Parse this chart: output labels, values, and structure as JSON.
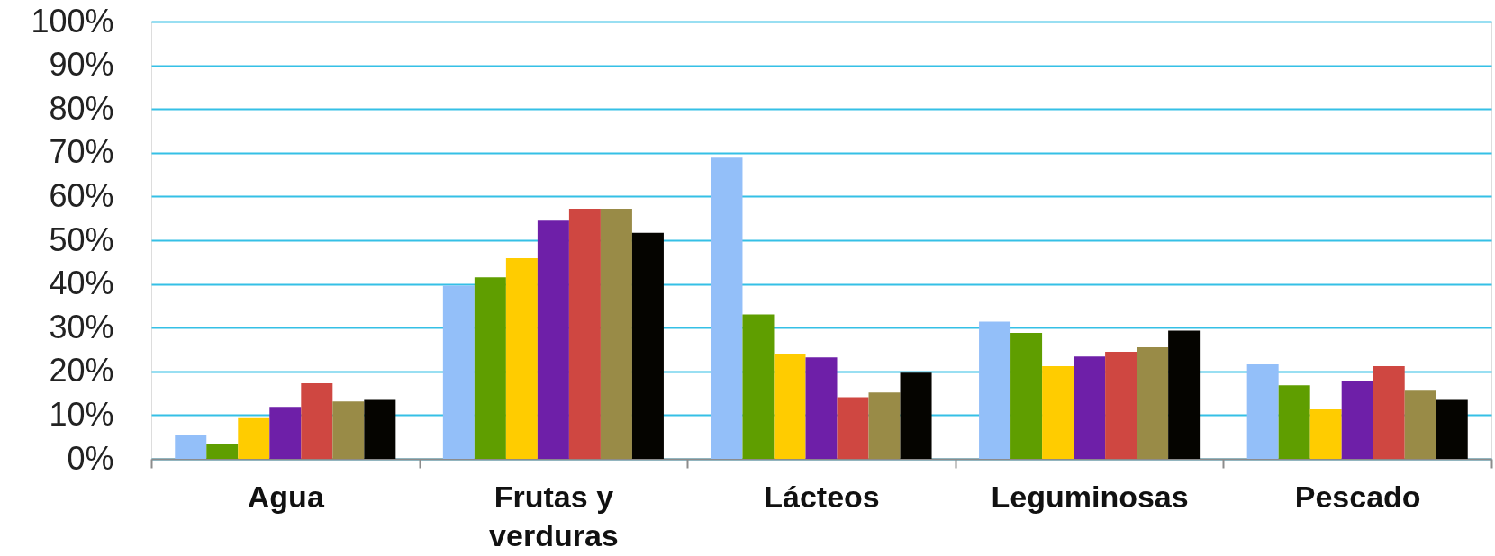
{
  "chart_data": {
    "type": "bar",
    "categories": [
      "Agua",
      "Frutas y verduras",
      "Lácteos",
      "Leguminosas",
      "Pescado"
    ],
    "series": [
      {
        "color": "#93bff9",
        "values": [
          5.4,
          39.6,
          68.9,
          31.4,
          21.6
        ]
      },
      {
        "color": "#5f9e00",
        "values": [
          3.3,
          41.5,
          33.0,
          28.8,
          16.8
        ]
      },
      {
        "color": "#ffcc00",
        "values": [
          9.3,
          45.9,
          23.9,
          21.2,
          11.3
        ]
      },
      {
        "color": "#6e1fa8",
        "values": [
          11.9,
          54.5,
          23.2,
          23.4,
          17.9
        ]
      },
      {
        "color": "#cf4741",
        "values": [
          17.3,
          57.2,
          14.1,
          24.5,
          21.2
        ]
      },
      {
        "color": "#998b47",
        "values": [
          13.1,
          57.2,
          15.2,
          25.5,
          15.6
        ]
      },
      {
        "color": "#050400",
        "values": [
          13.5,
          51.7,
          19.7,
          29.3,
          13.5
        ]
      }
    ],
    "ylim": [
      0,
      100
    ],
    "yticks": [
      {
        "value": 0,
        "label": "0%"
      },
      {
        "value": 10,
        "label": "10%"
      },
      {
        "value": 20,
        "label": "20%"
      },
      {
        "value": 30,
        "label": "30%"
      },
      {
        "value": 40,
        "label": "40%"
      },
      {
        "value": 50,
        "label": "50%"
      },
      {
        "value": 60,
        "label": "60%"
      },
      {
        "value": 70,
        "label": "70%"
      },
      {
        "value": 80,
        "label": "80%"
      },
      {
        "value": 90,
        "label": "90%"
      },
      {
        "value": 100,
        "label": "100%"
      }
    ],
    "grid": "y"
  }
}
